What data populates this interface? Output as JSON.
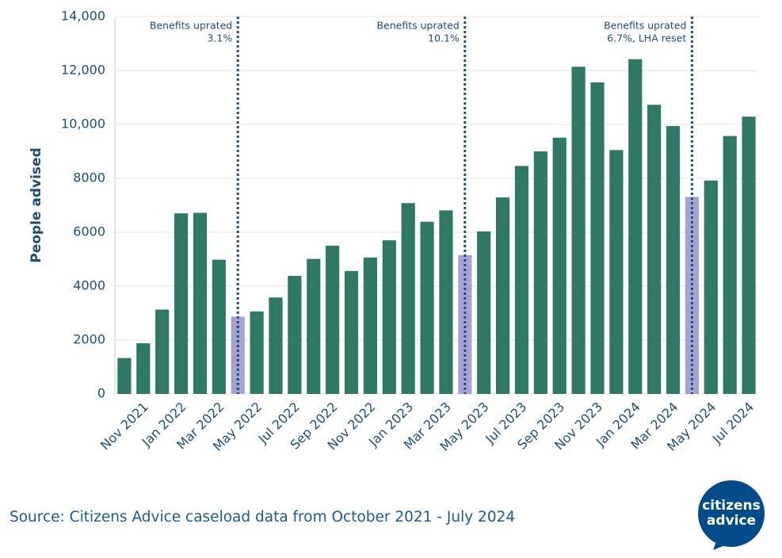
{
  "chart_data": {
    "type": "bar",
    "y_label": "People advised",
    "categories": [
      null,
      "Nov 2021",
      null,
      "Jan 2022",
      null,
      "Mar 2022",
      null,
      "May 2022",
      null,
      "Jul 2022",
      null,
      "Sep 2022",
      null,
      "Nov 2022",
      null,
      "Jan 2023",
      null,
      "Mar 2023",
      null,
      "May 2023",
      null,
      "Jul 2023",
      null,
      "Sep 2023",
      null,
      "Nov 2023",
      null,
      "Jan 2024",
      null,
      "Mar 2024",
      null,
      "May 2024",
      null,
      "Jul 2024"
    ],
    "values": [
      1330,
      1880,
      3130,
      6700,
      6720,
      4980,
      2870,
      3060,
      3580,
      4380,
      5010,
      5500,
      4560,
      5060,
      5700,
      7080,
      6390,
      6810,
      5150,
      6030,
      7290,
      8460,
      9000,
      9510,
      12140,
      11560,
      9050,
      12420,
      10730,
      9940,
      7310,
      7920,
      9570,
      10290
    ],
    "color": "#2e7865",
    "highlight_color": "#a5a3d3",
    "highlighted": [
      6,
      18,
      30
    ],
    "annotations": [
      [
        "Benefits uprated",
        "3.1%"
      ],
      [
        "Benefits uprated",
        "10.1%"
      ],
      [
        "Benefits uprated",
        "6.7%, LHA reset"
      ]
    ],
    "ylim": [
      0,
      14000
    ],
    "yticks": [
      0,
      2000,
      4000,
      6000,
      8000,
      {
        "value": 10000,
        "label": "10,000"
      },
      {
        "value": 12000,
        "label": "12,000"
      },
      {
        "value": 14000,
        "label": "14,000"
      }
    ],
    "grid": true,
    "source": "Source: Citizens Advice caseload data from October 2021 - July 2024",
    "logo": [
      "citizens",
      "advice"
    ]
  }
}
